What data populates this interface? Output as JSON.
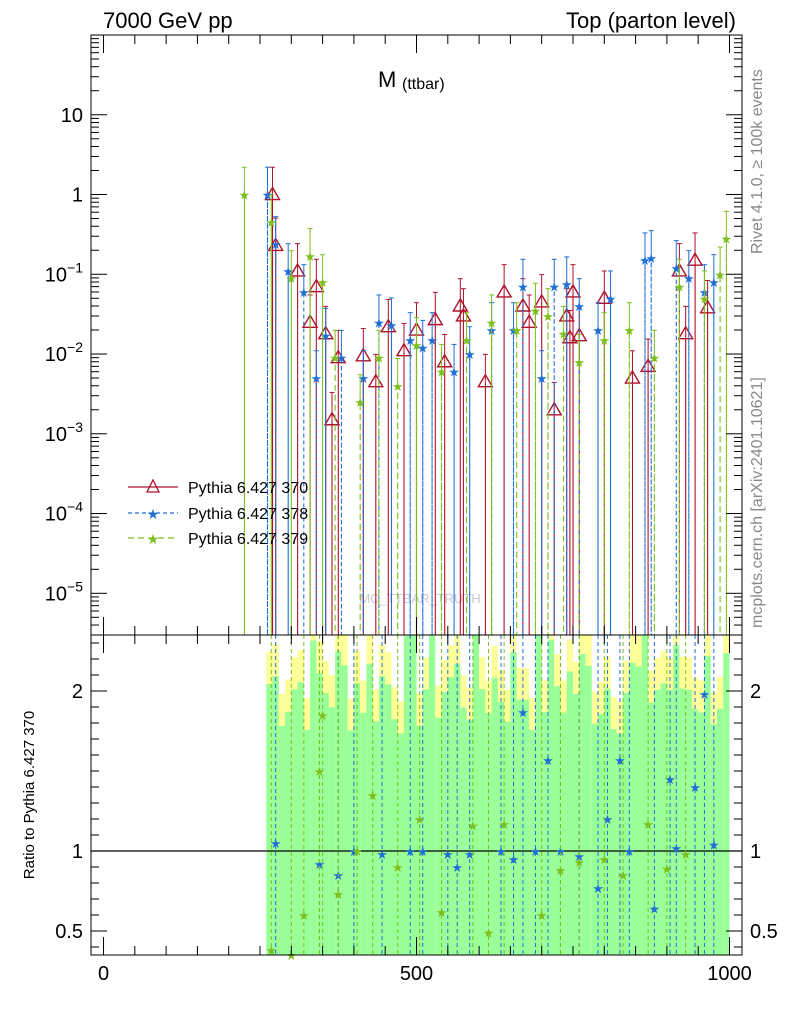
{
  "header": {
    "left": "7000 GeV pp",
    "right": "Top (parton level)"
  },
  "side": {
    "rivet": "Rivet 4.1.0, ≥ 100k events",
    "mcplots": "mcplots.cern.ch [arXiv:2401.10621]"
  },
  "watermark": "MC_TTBAR_TRUTH",
  "colors": {
    "s370": "#b0102a",
    "s378": "#1f6fd6",
    "s379": "#7dbf1c",
    "band_yellow": "#ffff99",
    "band_green": "#99ff99"
  },
  "chart_data": {
    "type": "line",
    "title_main": "M",
    "title_sub": "(ttbar)",
    "xlabel": "",
    "ylabel_ratio": "Ratio to Pythia 6.427 370",
    "xlim": [
      -20,
      1020
    ],
    "ylim_main": [
      3e-06,
      100
    ],
    "ylim_ratio": [
      0.35,
      2.35
    ],
    "x_ticks": [
      0,
      500,
      1000
    ],
    "x_tick_labels": [
      "0",
      "500",
      "1000"
    ],
    "y_ticks_main": [
      1e-05,
      0.0001,
      0.001,
      0.01,
      0.1,
      1,
      10
    ],
    "y_ticks_ratio": [
      0.5,
      1,
      2
    ],
    "y_tick_labels_ratio": [
      "0.5",
      "1",
      "2"
    ],
    "legend": [
      "Pythia 6.427 370",
      "Pythia 6.427 378",
      "Pythia 6.427 379"
    ],
    "series": [
      {
        "name": "Pythia 6.427 370",
        "color": "#b0102a",
        "marker": "triangle",
        "dash": "",
        "x": [
          270,
          275,
          310,
          330,
          340,
          355,
          365,
          375,
          415,
          435,
          455,
          480,
          500,
          530,
          545,
          570,
          575,
          610,
          640,
          670,
          680,
          700,
          720,
          740,
          745,
          750,
          760,
          800,
          845,
          870,
          920,
          930,
          945,
          965
        ],
        "y": [
          1.0,
          0.23,
          0.11,
          0.025,
          0.07,
          0.018,
          0.0015,
          0.009,
          0.0095,
          0.0045,
          0.022,
          0.011,
          0.02,
          0.027,
          0.008,
          0.04,
          0.03,
          0.0045,
          0.06,
          0.04,
          0.025,
          0.045,
          0.002,
          0.03,
          0.016,
          0.06,
          0.017,
          0.05,
          0.005,
          0.007,
          0.11,
          0.018,
          0.15,
          0.038
        ]
      },
      {
        "name": "Pythia 6.427 378",
        "color": "#1f6fd6",
        "marker": "star",
        "dash": "4,3",
        "x": [
          262,
          275,
          295,
          320,
          340,
          355,
          380,
          415,
          440,
          460,
          490,
          510,
          525,
          560,
          585,
          620,
          655,
          670,
          700,
          720,
          740,
          760,
          790,
          810,
          865,
          875,
          915,
          935,
          960,
          975
        ],
        "y": [
          1.0,
          0.24,
          0.11,
          0.06,
          0.005,
          0.017,
          0.009,
          0.005,
          0.025,
          0.023,
          0.015,
          0.012,
          0.015,
          0.006,
          0.01,
          0.02,
          0.02,
          0.07,
          0.005,
          0.07,
          0.075,
          0.04,
          0.02,
          0.05,
          0.15,
          0.16,
          0.12,
          0.09,
          0.06,
          0.08
        ]
      },
      {
        "name": "Pythia 6.427 379",
        "color": "#7dbf1c",
        "marker": "star",
        "dash": "6,4",
        "x": [
          225,
          268,
          300,
          330,
          350,
          370,
          410,
          440,
          470,
          500,
          540,
          580,
          620,
          660,
          690,
          710,
          735,
          760,
          800,
          840,
          880,
          920,
          960,
          985,
          995
        ],
        "y": [
          1.0,
          0.45,
          0.09,
          0.17,
          0.08,
          0.009,
          0.0025,
          0.009,
          0.004,
          0.013,
          0.006,
          0.015,
          0.025,
          0.02,
          0.035,
          0.03,
          0.018,
          0.008,
          0.015,
          0.02,
          0.009,
          0.07,
          0.05,
          0.1,
          0.28
        ]
      }
    ],
    "ratio_series": [
      {
        "name": "Pythia 6.427 378",
        "color": "#1f6fd6",
        "x": [
          275,
          345,
          375,
          400,
          445,
          490,
          510,
          550,
          565,
          585,
          635,
          655,
          670,
          690,
          710,
          730,
          760,
          790,
          805,
          825,
          840,
          880,
          905,
          915,
          945,
          960,
          975
        ],
        "y": [
          1.05,
          0.92,
          0.85,
          1.0,
          0.98,
          1.0,
          1.0,
          0.98,
          0.9,
          0.98,
          1.0,
          0.95,
          1.87,
          1.0,
          1.57,
          1.0,
          0.97,
          0.77,
          1.2,
          1.57,
          1.0,
          0.64,
          1.45,
          1.02,
          1.4,
          1.98,
          1.04
        ]
      },
      {
        "name": "Pythia 6.427 379",
        "color": "#7dbf1c",
        "x": [
          268,
          300,
          320,
          345,
          350,
          375,
          405,
          430,
          470,
          505,
          540,
          590,
          615,
          640,
          700,
          730,
          760,
          800,
          830,
          870,
          900,
          930
        ],
        "y": [
          0.38,
          0.35,
          0.6,
          1.5,
          1.85,
          0.73,
          1.0,
          1.35,
          0.9,
          1.2,
          0.62,
          1.16,
          0.49,
          1.17,
          0.6,
          0.88,
          0.93,
          0.95,
          0.85,
          1.17,
          0.89,
          0.98
        ]
      }
    ]
  }
}
